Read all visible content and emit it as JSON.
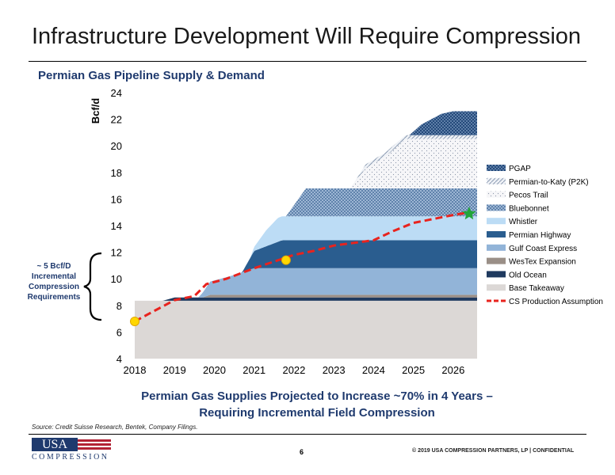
{
  "slide": {
    "title": "Infrastructure Development Will Require Compression",
    "takeaway_line1": "Permian Gas Supplies Projected to Increase ~70% in 4 Years –",
    "takeaway_line2": "Requiring Incremental Field Compression",
    "source": "Source: Credit Suisse Research, Bentek, Company Filings.",
    "page_number": "6",
    "copyright": "© 2019 USA COMPRESSION PARTNERS, LP   |   CONFIDENTIAL",
    "logo_top": "USA",
    "logo_bottom": "COMPRESSION",
    "annotation_lines": [
      "~ 5 Bcf/D",
      "Incremental",
      "Compression",
      "Requirements"
    ]
  },
  "chart_data": {
    "type": "area",
    "title": "Permian Gas Pipeline Supply & Demand",
    "ylabel": "Bcf/d",
    "xlabel": "",
    "xlim": [
      2018,
      2026.6
    ],
    "ylim": [
      4,
      24
    ],
    "yticks": [
      4,
      6,
      8,
      10,
      12,
      14,
      16,
      18,
      20,
      22,
      24
    ],
    "xticks": [
      "2018",
      "2019",
      "2020",
      "2021",
      "2022",
      "2023",
      "2024",
      "2025",
      "2026"
    ],
    "grid": false,
    "legend_position": "right",
    "stacked_series": [
      {
        "name": "Base Takeaway",
        "color": "#dcd8d6",
        "points": [
          [
            2018,
            8.35
          ],
          [
            2026.6,
            8.35
          ]
        ]
      },
      {
        "name": "Old Ocean",
        "color": "#1f3a5f",
        "points": [
          [
            2018,
            0
          ],
          [
            2018.7,
            0
          ],
          [
            2019.0,
            0.25
          ],
          [
            2026.6,
            0.25
          ]
        ]
      },
      {
        "name": "WesTex Expansion",
        "color": "#9a8f87",
        "points": [
          [
            2018,
            0
          ],
          [
            2019.7,
            0
          ],
          [
            2019.9,
            0.2
          ],
          [
            2026.6,
            0.2
          ]
        ]
      },
      {
        "name": "Gulf Coast Express",
        "color": "#92b4d8",
        "points": [
          [
            2018,
            0
          ],
          [
            2019.6,
            0
          ],
          [
            2019.9,
            1.0
          ],
          [
            2020.4,
            1.4
          ],
          [
            2021.0,
            2.0
          ],
          [
            2026.6,
            2.0
          ]
        ]
      },
      {
        "name": "Permian Highway",
        "color": "#2a5d8f",
        "points": [
          [
            2018,
            0
          ],
          [
            2020.7,
            0
          ],
          [
            2021.0,
            1.3
          ],
          [
            2021.7,
            2.1
          ],
          [
            2026.6,
            2.1
          ]
        ]
      },
      {
        "name": "Whistler",
        "color": "#bcdcf5",
        "points": [
          [
            2018,
            0
          ],
          [
            2020.9,
            0
          ],
          [
            2021.3,
            1.2
          ],
          [
            2021.6,
            1.8
          ],
          [
            2026.6,
            1.8
          ]
        ]
      },
      {
        "name": "Bluebonnet",
        "color": "#7fa0c4",
        "points": [
          [
            2018,
            0
          ],
          [
            2021.8,
            0
          ],
          [
            2022.3,
            2.1
          ],
          [
            2026.6,
            2.1
          ]
        ]
      },
      {
        "name": "Pecos Trail",
        "color": "#f4f4f6",
        "points": [
          [
            2018,
            0
          ],
          [
            2023.4,
            0
          ],
          [
            2023.8,
            1.5
          ],
          [
            2024.3,
            2.4
          ],
          [
            2024.8,
            3.7
          ],
          [
            2026.6,
            3.7
          ]
        ]
      },
      {
        "name": "Permian-to-Katy (P2K)",
        "color": "#e6ebf2",
        "points": [
          [
            2018,
            0
          ],
          [
            2023.5,
            0
          ],
          [
            2023.8,
            0.3
          ],
          [
            2025.0,
            0.3
          ],
          [
            2026.6,
            0.3
          ]
        ]
      },
      {
        "name": "PGAP",
        "color": "#24497a",
        "points": [
          [
            2018,
            0
          ],
          [
            2024.9,
            0
          ],
          [
            2025.2,
            0.8
          ],
          [
            2025.7,
            1.6
          ],
          [
            2026.0,
            1.8
          ],
          [
            2026.6,
            1.8
          ]
        ]
      }
    ],
    "line_series": {
      "name": "CS Production Assumption",
      "color": "#e8231e",
      "points": [
        [
          2018,
          6.8
        ],
        [
          2018.5,
          7.6
        ],
        [
          2019.0,
          8.4
        ],
        [
          2019.5,
          8.7
        ],
        [
          2019.8,
          9.6
        ],
        [
          2020.3,
          10.0
        ],
        [
          2021.0,
          10.8
        ],
        [
          2021.5,
          11.3
        ],
        [
          2022.0,
          11.8
        ],
        [
          2022.5,
          12.1
        ],
        [
          2023.0,
          12.5
        ],
        [
          2023.5,
          12.7
        ],
        [
          2024.0,
          12.9
        ],
        [
          2024.5,
          13.6
        ],
        [
          2025.0,
          14.2
        ],
        [
          2025.5,
          14.5
        ],
        [
          2026.0,
          14.8
        ],
        [
          2026.4,
          15.0
        ]
      ]
    },
    "markers": [
      {
        "shape": "circle",
        "color": "#ffd700",
        "x": 2018,
        "y": 6.8
      },
      {
        "shape": "circle",
        "color": "#ffd700",
        "x": 2021.8,
        "y": 11.4
      },
      {
        "shape": "star",
        "color": "#22a53a",
        "x": 2026.4,
        "y": 14.9
      }
    ]
  }
}
